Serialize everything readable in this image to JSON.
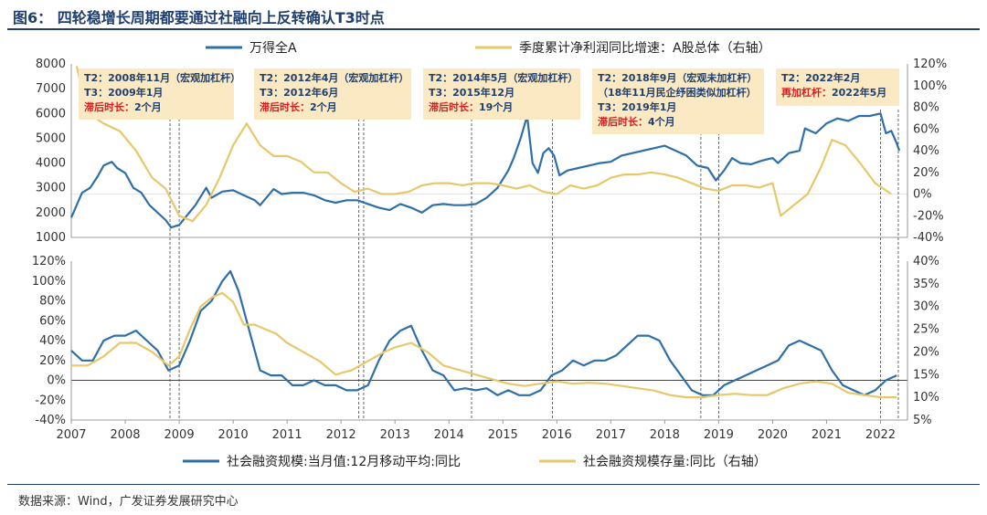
{
  "title": "图6：  四轮稳增长周期都要通过社融向上反转确认T3时点",
  "source": "数据来源：Wind，广发证券发展研究中心",
  "colors": {
    "blue": "#2e6fa8",
    "yellow": "#e6c86a",
    "annot_bg": "#fbe9c3",
    "red": "#d02020",
    "navy": "#1f3f6e"
  },
  "chart_data": [
    {
      "id": "top",
      "type": "line",
      "x_range": [
        2007.0,
        2022.5
      ],
      "ylim_left": [
        1000,
        8000
      ],
      "ylim_right": [
        -40,
        120
      ],
      "left_ticks": [
        "8000",
        "7000",
        "6000",
        "5000",
        "4000",
        "3000",
        "2000",
        "1000"
      ],
      "left_tick_values": [
        8000,
        7000,
        6000,
        5000,
        4000,
        3000,
        2000,
        1000
      ],
      "right_ticks": [
        "120%",
        "100%",
        "80%",
        "60%",
        "40%",
        "20%",
        "0%",
        "-20%",
        "-40%"
      ],
      "right_tick_values": [
        120,
        100,
        80,
        60,
        40,
        20,
        0,
        -20,
        -40
      ],
      "series": [
        {
          "name": "万得全A",
          "axis": "left",
          "color": "#2e6fa8",
          "x": [
            2007.0,
            2007.1,
            2007.2,
            2007.35,
            2007.5,
            2007.6,
            2007.75,
            2007.85,
            2008.0,
            2008.15,
            2008.3,
            2008.45,
            2008.6,
            2008.75,
            2008.85,
            2009.0,
            2009.15,
            2009.3,
            2009.5,
            2009.6,
            2009.8,
            2010.0,
            2010.2,
            2010.4,
            2010.5,
            2010.75,
            2010.9,
            2011.1,
            2011.3,
            2011.5,
            2011.7,
            2011.9,
            2012.1,
            2012.3,
            2012.5,
            2012.7,
            2012.9,
            2013.1,
            2013.3,
            2013.5,
            2013.7,
            2013.9,
            2014.1,
            2014.3,
            2014.5,
            2014.7,
            2014.9,
            2015.1,
            2015.2,
            2015.33,
            2015.45,
            2015.55,
            2015.65,
            2015.75,
            2015.85,
            2015.95,
            2016.05,
            2016.2,
            2016.4,
            2016.6,
            2016.8,
            2017.0,
            2017.2,
            2017.4,
            2017.6,
            2017.8,
            2018.0,
            2018.2,
            2018.4,
            2018.6,
            2018.8,
            2018.95,
            2019.1,
            2019.25,
            2019.4,
            2019.6,
            2019.8,
            2020.0,
            2020.1,
            2020.3,
            2020.5,
            2020.6,
            2020.8,
            2021.0,
            2021.2,
            2021.4,
            2021.6,
            2021.8,
            2022.0,
            2022.1,
            2022.2,
            2022.3,
            2022.35
          ],
          "values": [
            1800,
            2300,
            2800,
            3000,
            3500,
            3900,
            4050,
            3800,
            3600,
            3000,
            2800,
            2300,
            2000,
            1700,
            1400,
            1500,
            1900,
            2300,
            3000,
            2600,
            2850,
            2900,
            2700,
            2500,
            2300,
            2950,
            2750,
            2800,
            2800,
            2700,
            2500,
            2400,
            2500,
            2500,
            2350,
            2200,
            2100,
            2350,
            2200,
            2000,
            2300,
            2350,
            2300,
            2300,
            2350,
            2600,
            3000,
            3700,
            4200,
            5000,
            5900,
            4000,
            3600,
            4400,
            4600,
            4300,
            3500,
            3700,
            3800,
            3900,
            4000,
            4050,
            4300,
            4400,
            4500,
            4600,
            4700,
            4500,
            4300,
            3900,
            3800,
            3300,
            3700,
            4200,
            4000,
            3950,
            4100,
            4200,
            4000,
            4400,
            4500,
            5400,
            5200,
            5600,
            5800,
            5700,
            5900,
            5900,
            6000,
            5200,
            5300,
            4800,
            4500
          ]
        },
        {
          "name": "季度累计净利润同比增速：A股总体（右轴）",
          "axis": "right",
          "color": "#e6c86a",
          "x": [
            2007.1,
            2007.3,
            2007.6,
            2007.9,
            2008.2,
            2008.5,
            2008.75,
            2009.0,
            2009.25,
            2009.5,
            2009.75,
            2010.0,
            2010.25,
            2010.5,
            2010.75,
            2011.0,
            2011.25,
            2011.5,
            2011.75,
            2012.0,
            2012.25,
            2012.5,
            2012.75,
            2013.0,
            2013.25,
            2013.5,
            2013.75,
            2014.0,
            2014.25,
            2014.5,
            2014.75,
            2015.0,
            2015.25,
            2015.5,
            2015.75,
            2016.0,
            2016.25,
            2016.5,
            2016.75,
            2017.0,
            2017.25,
            2017.5,
            2017.75,
            2018.0,
            2018.25,
            2018.5,
            2018.75,
            2019.0,
            2019.25,
            2019.5,
            2019.75,
            2020.0,
            2020.15,
            2020.4,
            2020.65,
            2020.9,
            2021.1,
            2021.35,
            2021.6,
            2021.9,
            2022.2
          ],
          "values": [
            118,
            75,
            65,
            58,
            40,
            15,
            5,
            -20,
            -25,
            -10,
            15,
            45,
            65,
            45,
            35,
            35,
            30,
            20,
            20,
            10,
            2,
            5,
            0,
            0,
            2,
            8,
            10,
            10,
            8,
            10,
            10,
            8,
            5,
            8,
            2,
            0,
            8,
            5,
            8,
            15,
            18,
            18,
            20,
            18,
            15,
            10,
            5,
            3,
            8,
            8,
            6,
            10,
            -20,
            -10,
            0,
            25,
            50,
            45,
            30,
            10,
            0
          ]
        }
      ],
      "annotations": [
        {
          "t2": "T2：2008年11月（宏观加杠杆）",
          "t3": "T3：2009年1月",
          "lag_label": "滞后时长：",
          "lag": "2个月"
        },
        {
          "t2": "T2：2012年4月（宏观加杠杆）",
          "t3": "T3：2012年6月",
          "lag_label": "滞后时长：",
          "lag": "2个月"
        },
        {
          "t2": "T2：2014年5月（宏观加杠杆）",
          "t3": "T3：2015年12月",
          "lag_label": "滞后时长：",
          "lag": "19个月"
        },
        {
          "t2": "T2：2018年9月（宏观未加杠杆）",
          "t2_extra": "（18年11月民企纾困类似加杠杆）",
          "t3": "T3：2019年1月",
          "lag_label": "滞后时长：",
          "lag": "4个月"
        },
        {
          "t2": "T2：2022年2月",
          "lag_label": "再加杠杆：",
          "lag": "2022年5月"
        }
      ]
    },
    {
      "id": "bottom",
      "type": "line",
      "x_range": [
        2007.0,
        2022.5
      ],
      "ylim_left": [
        -40,
        120
      ],
      "ylim_right": [
        5,
        40
      ],
      "left_ticks": [
        "120%",
        "100%",
        "80%",
        "60%",
        "40%",
        "20%",
        "0%",
        "-20%",
        "-40%"
      ],
      "left_tick_values": [
        120,
        100,
        80,
        60,
        40,
        20,
        0,
        -20,
        -40
      ],
      "right_ticks": [
        "40%",
        "35%",
        "30%",
        "25%",
        "20%",
        "15%",
        "10%",
        "5%"
      ],
      "right_tick_values": [
        40,
        35,
        30,
        25,
        20,
        15,
        10,
        5
      ],
      "x_ticks": [
        "2007",
        "2008",
        "2009",
        "2010",
        "2011",
        "2012",
        "2013",
        "2014",
        "2015",
        "2016",
        "2017",
        "2018",
        "2019",
        "2020",
        "2021",
        "2022"
      ],
      "x_tick_values": [
        2007,
        2008,
        2009,
        2010,
        2011,
        2012,
        2013,
        2014,
        2015,
        2016,
        2017,
        2018,
        2019,
        2020,
        2021,
        2022
      ],
      "series": [
        {
          "name": "社会融资规模:当月值:12月移动平均:同比",
          "axis": "left",
          "color": "#2e6fa8",
          "x": [
            2007.0,
            2007.2,
            2007.4,
            2007.6,
            2007.8,
            2008.0,
            2008.2,
            2008.4,
            2008.6,
            2008.8,
            2009.0,
            2009.2,
            2009.4,
            2009.6,
            2009.8,
            2009.95,
            2010.1,
            2010.3,
            2010.5,
            2010.7,
            2010.9,
            2011.1,
            2011.3,
            2011.5,
            2011.7,
            2011.9,
            2012.1,
            2012.3,
            2012.5,
            2012.7,
            2012.9,
            2013.1,
            2013.3,
            2013.5,
            2013.7,
            2013.9,
            2014.1,
            2014.3,
            2014.5,
            2014.7,
            2014.9,
            2015.1,
            2015.3,
            2015.5,
            2015.7,
            2015.9,
            2016.1,
            2016.3,
            2016.5,
            2016.7,
            2016.9,
            2017.1,
            2017.3,
            2017.5,
            2017.7,
            2017.9,
            2018.1,
            2018.3,
            2018.5,
            2018.7,
            2018.9,
            2019.1,
            2019.3,
            2019.5,
            2019.7,
            2019.9,
            2020.1,
            2020.3,
            2020.5,
            2020.7,
            2020.9,
            2021.1,
            2021.3,
            2021.5,
            2021.7,
            2021.9,
            2022.1,
            2022.3
          ],
          "values": [
            30,
            20,
            20,
            40,
            45,
            45,
            50,
            40,
            30,
            10,
            15,
            40,
            70,
            80,
            100,
            110,
            90,
            50,
            10,
            5,
            5,
            -5,
            -5,
            0,
            -5,
            -5,
            -10,
            -10,
            -5,
            20,
            40,
            50,
            55,
            30,
            10,
            5,
            -10,
            -8,
            -10,
            -8,
            -15,
            -10,
            -15,
            -15,
            -10,
            5,
            10,
            20,
            15,
            20,
            20,
            25,
            35,
            45,
            45,
            40,
            20,
            5,
            -10,
            -15,
            -15,
            -5,
            0,
            5,
            10,
            15,
            20,
            35,
            40,
            35,
            30,
            10,
            -5,
            -10,
            -15,
            -10,
            0,
            5
          ]
        },
        {
          "name": "社会融资规模存量:同比（右轴）",
          "axis": "right",
          "color": "#e6c86a",
          "x": [
            2007.0,
            2007.3,
            2007.6,
            2007.9,
            2008.2,
            2008.5,
            2008.8,
            2009.0,
            2009.2,
            2009.4,
            2009.6,
            2009.8,
            2010.0,
            2010.2,
            2010.4,
            2010.6,
            2010.8,
            2011.0,
            2011.3,
            2011.6,
            2011.9,
            2012.2,
            2012.5,
            2012.8,
            2013.0,
            2013.3,
            2013.6,
            2013.9,
            2014.2,
            2014.5,
            2014.8,
            2015.1,
            2015.4,
            2015.7,
            2016.0,
            2016.3,
            2016.6,
            2016.9,
            2017.2,
            2017.5,
            2017.8,
            2018.1,
            2018.4,
            2018.7,
            2019.0,
            2019.3,
            2019.6,
            2019.9,
            2020.2,
            2020.5,
            2020.8,
            2021.1,
            2021.4,
            2021.7,
            2022.0,
            2022.3
          ],
          "values": [
            17,
            17,
            19,
            22,
            22,
            20,
            17,
            19,
            25,
            30,
            32,
            33,
            31,
            26,
            26,
            25,
            24,
            22,
            20,
            18,
            15,
            16,
            18,
            20,
            21,
            22,
            20,
            17,
            16,
            15,
            14,
            13,
            12.5,
            13,
            13.5,
            13,
            13.2,
            13,
            12.5,
            12,
            11.5,
            10.5,
            10,
            10,
            10.5,
            10.8,
            10.5,
            10.5,
            12,
            13,
            13.5,
            13,
            11,
            10.5,
            10,
            10
          ]
        }
      ],
      "vlines": [
        2008.83,
        2009.0,
        2012.33,
        2012.42,
        2014.42,
        2015.92,
        2018.67,
        2019.0,
        2022.0,
        2022.33
      ]
    }
  ],
  "legend_top": [
    "万得全A",
    "季度累计净利润同比增速：A股总体（右轴）"
  ],
  "legend_bottom": [
    "社会融资规模:当月值:12月移动平均:同比",
    "社会融资规模存量:同比（右轴）"
  ]
}
